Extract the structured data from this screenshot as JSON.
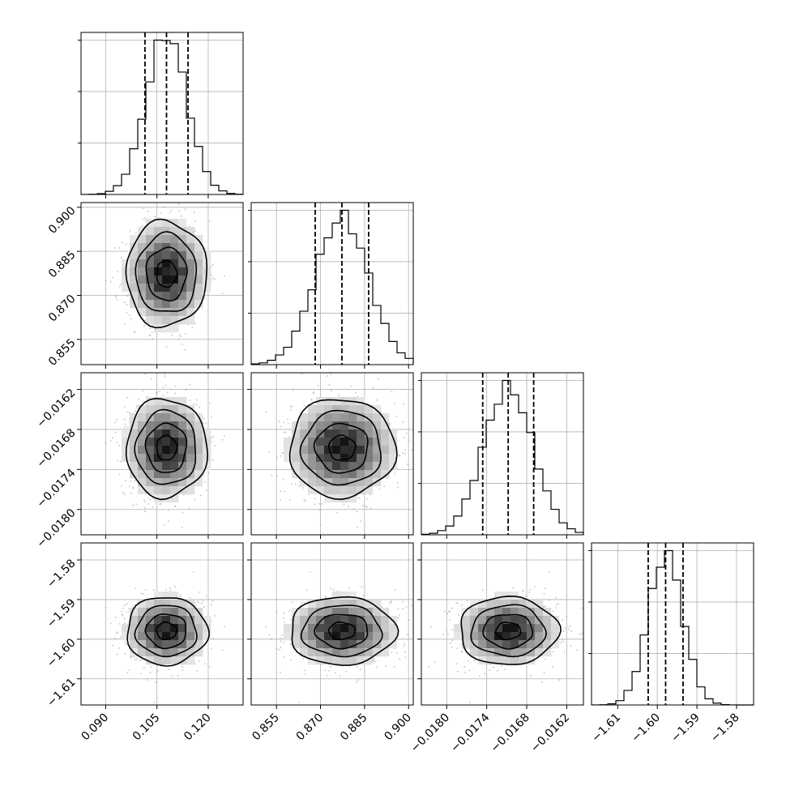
{
  "chart_data": {
    "type": "corner",
    "parameters": [
      {
        "ticks": [
          0.09,
          0.105,
          0.12
        ],
        "tick_labels": [
          "0.090",
          "0.105",
          "0.120"
        ],
        "range": [
          0.0828,
          0.1302
        ],
        "mean": 0.1078,
        "std": 0.0059,
        "quantiles": [
          0.1015,
          0.1078,
          0.1141
        ]
      },
      {
        "ticks": [
          0.855,
          0.87,
          0.885,
          0.9
        ],
        "tick_labels": [
          "0.855",
          "0.870",
          "0.885",
          "0.900"
        ],
        "range": [
          0.8464,
          0.9016
        ],
        "mean": 0.8773,
        "std": 0.009,
        "quantiles": [
          0.8682,
          0.8773,
          0.8864
        ]
      },
      {
        "ticks": [
          -0.018,
          -0.0174,
          -0.0168,
          -0.0162
        ],
        "tick_labels": [
          "−0.0180",
          "−0.0174",
          "−0.0168",
          "−0.0162"
        ],
        "range": [
          -0.01838,
          -0.01595
        ],
        "mean": -0.017078,
        "std": 0.00037,
        "quantiles": [
          -0.01746,
          -0.017078,
          -0.016696
        ]
      },
      {
        "ticks": [
          -1.61,
          -1.6,
          -1.59,
          -1.58
        ],
        "tick_labels": [
          "−1.61",
          "−1.60",
          "−1.59",
          "−1.58"
        ],
        "range": [
          -1.6166,
          -1.5757
        ],
        "mean": -1.5979,
        "std": 0.0043,
        "quantiles": [
          -1.6023,
          -1.5979,
          -1.5935
        ]
      }
    ],
    "hist_bins": 20,
    "contour_levels_sigma": [
      0.5,
      1.0,
      1.5,
      2.0
    ],
    "n_scatter_points": 900,
    "colors": {
      "line": "#000000",
      "scatter": "#9a9a9a",
      "grid": "#b0b0b0"
    }
  }
}
